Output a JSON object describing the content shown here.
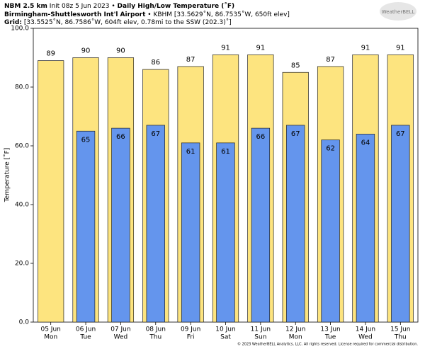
{
  "header": {
    "line1": {
      "model": "NBM 2.5 km",
      "init": "Init 08z 5 Jun 2023 •",
      "product": "Daily High/Low Temperature (˚F)"
    },
    "line2": {
      "station": "Birmingham-Shuttlesworth Int'l Airport",
      "details": "• KBHM [33.5629˚N, 86.7535˚W, 650ft elev]"
    },
    "line3": {
      "label": "Grid:",
      "details": "[33.5525˚N, 86.7586˚W, 604ft elev, 0.78mi to the SSW (202.3)˚]"
    },
    "logo": "WeatherBELL"
  },
  "chart_data": {
    "type": "bar",
    "ylabel": "Temperature [˚F]",
    "categories": [
      [
        "05 Jun",
        "Mon"
      ],
      [
        "06 Jun",
        "Tue"
      ],
      [
        "07 Jun",
        "Wed"
      ],
      [
        "08 Jun",
        "Thu"
      ],
      [
        "09 Jun",
        "Fri"
      ],
      [
        "10 Jun",
        "Sat"
      ],
      [
        "11 Jun",
        "Sun"
      ],
      [
        "12 Jun",
        "Mon"
      ],
      [
        "13 Jun",
        "Tue"
      ],
      [
        "14 Jun",
        "Wed"
      ],
      [
        "15 Jun",
        "Thu"
      ]
    ],
    "series": [
      {
        "color": "#fde47f",
        "values": [
          89,
          90,
          90,
          86,
          87,
          91,
          91,
          85,
          87,
          91,
          91
        ]
      },
      {
        "color": "#6495ed",
        "values": [
          null,
          65,
          66,
          67,
          61,
          61,
          66,
          67,
          62,
          64,
          67
        ]
      }
    ],
    "ylim": [
      0,
      100
    ],
    "yticks": [
      {
        "value": 0,
        "label": "0.0"
      },
      {
        "value": 20,
        "label": "20.0"
      },
      {
        "value": 40,
        "label": "40.0"
      },
      {
        "value": 60,
        "label": "60.0"
      },
      {
        "value": 80,
        "label": "80.0"
      },
      {
        "value": 100,
        "label": "100.0"
      }
    ]
  },
  "footer": "© 2023 WeatherBELL Analytics, LLC. All rights reserved. License required for commercial distribution."
}
